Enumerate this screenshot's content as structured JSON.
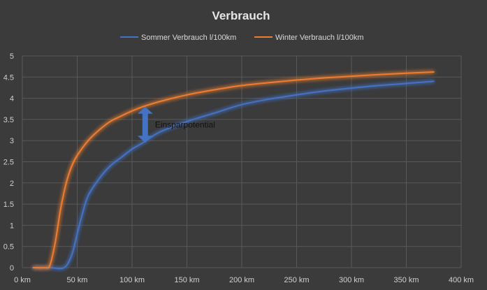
{
  "chart_data": {
    "type": "line",
    "title": "Verbrauch",
    "xlabel": "",
    "ylabel": "",
    "x_unit_suffix": " km",
    "xlim": [
      0,
      400
    ],
    "ylim": [
      0,
      5
    ],
    "x_ticks": [
      0,
      50,
      100,
      150,
      200,
      250,
      300,
      350,
      400
    ],
    "y_ticks": [
      0,
      0.5,
      1,
      1.5,
      2,
      2.5,
      3,
      3.5,
      4,
      4.5,
      5
    ],
    "x_tick_labels": [
      "0 km",
      "50 km",
      "100 km",
      "150 km",
      "200 km",
      "250 km",
      "300 km",
      "350 km",
      "400 km"
    ],
    "y_tick_labels": [
      "0",
      "0.5",
      "1",
      "1.5",
      "2",
      "2.5",
      "3",
      "3.5",
      "4",
      "4.5",
      "5"
    ],
    "grid": true,
    "legend_position": "top",
    "series": [
      {
        "name": "Sommer Verbrauch l/100km",
        "color": "#4472c4",
        "points": [
          [
            10,
            0
          ],
          [
            25,
            0
          ],
          [
            38,
            0
          ],
          [
            45,
            0.3
          ],
          [
            50,
            0.8
          ],
          [
            55,
            1.3
          ],
          [
            60,
            1.7
          ],
          [
            70,
            2.1
          ],
          [
            80,
            2.4
          ],
          [
            90,
            2.6
          ],
          [
            100,
            2.8
          ],
          [
            110,
            2.95
          ],
          [
            125,
            3.2
          ],
          [
            150,
            3.45
          ],
          [
            175,
            3.65
          ],
          [
            200,
            3.85
          ],
          [
            225,
            3.98
          ],
          [
            250,
            4.08
          ],
          [
            275,
            4.17
          ],
          [
            300,
            4.24
          ],
          [
            325,
            4.3
          ],
          [
            350,
            4.35
          ],
          [
            375,
            4.4
          ]
        ]
      },
      {
        "name": "Winter Verbrauch l/100km",
        "color": "#ed7d31",
        "points": [
          [
            10,
            0
          ],
          [
            20,
            0
          ],
          [
            25,
            0.05
          ],
          [
            30,
            0.6
          ],
          [
            35,
            1.4
          ],
          [
            40,
            2.0
          ],
          [
            45,
            2.4
          ],
          [
            50,
            2.65
          ],
          [
            60,
            3.0
          ],
          [
            70,
            3.25
          ],
          [
            80,
            3.45
          ],
          [
            90,
            3.58
          ],
          [
            100,
            3.7
          ],
          [
            110,
            3.8
          ],
          [
            125,
            3.92
          ],
          [
            150,
            4.08
          ],
          [
            175,
            4.2
          ],
          [
            200,
            4.3
          ],
          [
            225,
            4.37
          ],
          [
            250,
            4.43
          ],
          [
            275,
            4.48
          ],
          [
            300,
            4.52
          ],
          [
            325,
            4.56
          ],
          [
            350,
            4.59
          ],
          [
            375,
            4.62
          ]
        ]
      }
    ],
    "annotations": [
      {
        "text": "Einsparpotential",
        "x": 112,
        "y_top": 3.8,
        "y_bottom": 2.95,
        "color": "#4472c4"
      }
    ]
  }
}
